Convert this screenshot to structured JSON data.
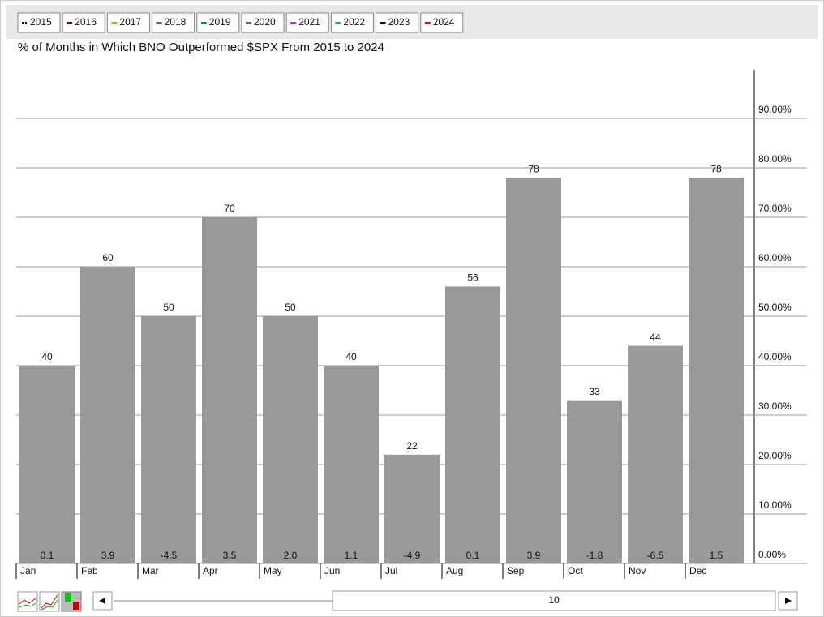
{
  "chart_data": {
    "type": "bar",
    "title": "% of Months in Which BNO Outperformed $SPX From 2015 to 2024",
    "categories": [
      "Jan",
      "Feb",
      "Mar",
      "Apr",
      "May",
      "Jun",
      "Jul",
      "Aug",
      "Sep",
      "Oct",
      "Nov",
      "Dec"
    ],
    "values": [
      40,
      60,
      50,
      70,
      50,
      40,
      22,
      56,
      78,
      33,
      44,
      78
    ],
    "inner_labels": [
      "0.1",
      "3.9",
      "-4.5",
      "3.5",
      "2.0",
      "1.1",
      "-4.9",
      "0.1",
      "3.9",
      "-1.8",
      "-6.5",
      "1.5"
    ],
    "color": "#999999",
    "ylim": [
      0,
      100
    ],
    "yticks": [
      {
        "value": 0,
        "label": "0.00%"
      },
      {
        "value": 10,
        "label": "10.00%"
      },
      {
        "value": 20,
        "label": "20.00%"
      },
      {
        "value": 30,
        "label": "30.00%"
      },
      {
        "value": 40,
        "label": "40.00%"
      },
      {
        "value": 50,
        "label": "50.00%"
      },
      {
        "value": 60,
        "label": "60.00%"
      },
      {
        "value": 70,
        "label": "70.00%"
      },
      {
        "value": 80,
        "label": "80.00%"
      },
      {
        "value": 90,
        "label": "90.00%"
      }
    ],
    "grid": true,
    "legend": [
      {
        "name": "2015",
        "color": "#000080"
      },
      {
        "name": "2016",
        "color": "#8b0000"
      },
      {
        "name": "2017",
        "color": "#ff8c00"
      },
      {
        "name": "2018",
        "color": "#9933cc"
      },
      {
        "name": "2019",
        "color": "#008b8b"
      },
      {
        "name": "2020",
        "color": "#666666"
      },
      {
        "name": "2021",
        "color": "#ff00ff"
      },
      {
        "name": "2022",
        "color": "#00cc00"
      },
      {
        "name": "2023",
        "color": "#00008b"
      },
      {
        "name": "2024",
        "color": "#ff0000"
      }
    ],
    "scroll_label": "10"
  }
}
